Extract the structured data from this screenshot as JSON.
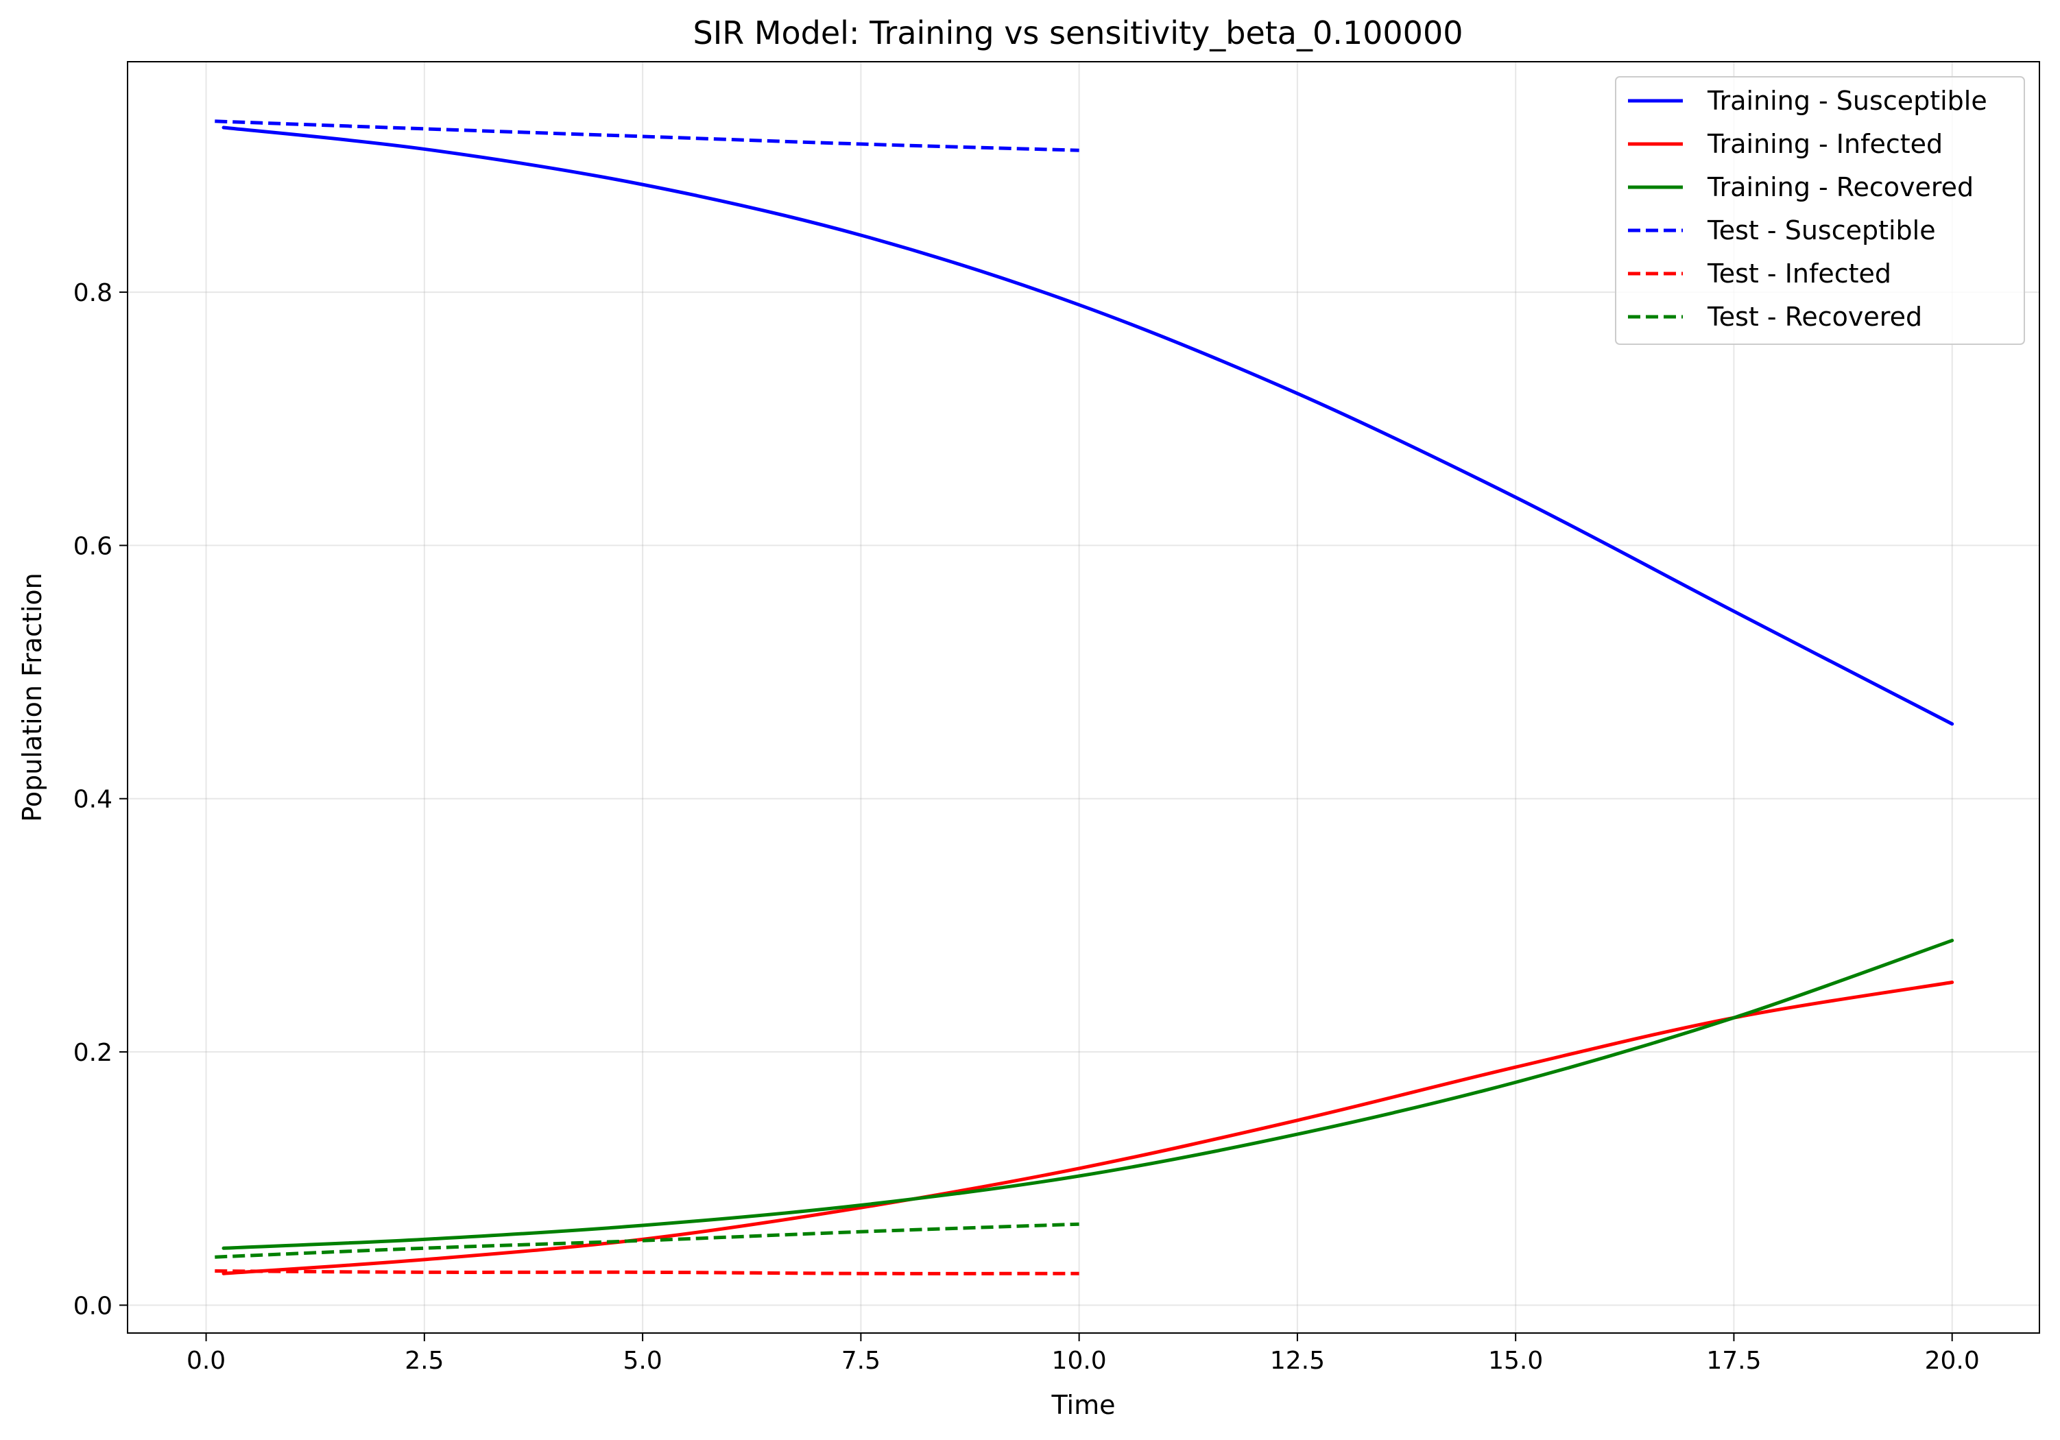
{
  "chart_data": {
    "type": "line",
    "title": "SIR Model: Training vs sensitivity_beta_0.100000",
    "xlabel": "Time",
    "ylabel": "Population Fraction",
    "xlim": [
      -0.9,
      21.0
    ],
    "ylim": [
      -0.022,
      0.982
    ],
    "xticks": [
      0.0,
      2.5,
      5.0,
      7.5,
      10.0,
      12.5,
      15.0,
      17.5,
      20.0
    ],
    "xtick_labels": [
      "0.0",
      "2.5",
      "5.0",
      "7.5",
      "10.0",
      "12.5",
      "15.0",
      "17.5",
      "20.0"
    ],
    "yticks": [
      0.0,
      0.2,
      0.4,
      0.6,
      0.8
    ],
    "ytick_labels": [
      "0.0",
      "0.2",
      "0.4",
      "0.6",
      "0.8"
    ],
    "grid": true,
    "legend_position": "top-right",
    "series": [
      {
        "name": "Training - Susceptible",
        "color": "#0000ff",
        "style": "solid",
        "x": [
          0.2,
          2.5,
          5.0,
          7.5,
          10.0,
          12.5,
          15.0,
          17.5,
          20.0
        ],
        "y": [
          0.93,
          0.913,
          0.885,
          0.845,
          0.79,
          0.72,
          0.638,
          0.548,
          0.459
        ]
      },
      {
        "name": "Training - Infected",
        "color": "#ff0000",
        "style": "solid",
        "x": [
          0.2,
          2.5,
          5.0,
          7.5,
          10.0,
          12.5,
          15.0,
          17.5,
          20.0
        ],
        "y": [
          0.025,
          0.036,
          0.052,
          0.077,
          0.108,
          0.146,
          0.188,
          0.227,
          0.255
        ]
      },
      {
        "name": "Training - Recovered",
        "color": "#008000",
        "style": "solid",
        "x": [
          0.2,
          2.5,
          5.0,
          7.5,
          10.0,
          12.5,
          15.0,
          17.5,
          20.0
        ],
        "y": [
          0.045,
          0.052,
          0.063,
          0.079,
          0.102,
          0.135,
          0.176,
          0.227,
          0.288
        ]
      },
      {
        "name": "Test - Susceptible",
        "color": "#0000ff",
        "style": "dashed",
        "x": [
          0.1,
          2.5,
          5.0,
          7.5,
          10.0
        ],
        "y": [
          0.935,
          0.929,
          0.923,
          0.917,
          0.912
        ]
      },
      {
        "name": "Test - Infected",
        "color": "#ff0000",
        "style": "dashed",
        "x": [
          0.1,
          2.5,
          5.0,
          7.5,
          10.0
        ],
        "y": [
          0.027,
          0.026,
          0.026,
          0.025,
          0.025
        ]
      },
      {
        "name": "Test - Recovered",
        "color": "#008000",
        "style": "dashed",
        "x": [
          0.1,
          2.5,
          5.0,
          7.5,
          10.0
        ],
        "y": [
          0.038,
          0.045,
          0.051,
          0.058,
          0.064
        ]
      }
    ]
  }
}
